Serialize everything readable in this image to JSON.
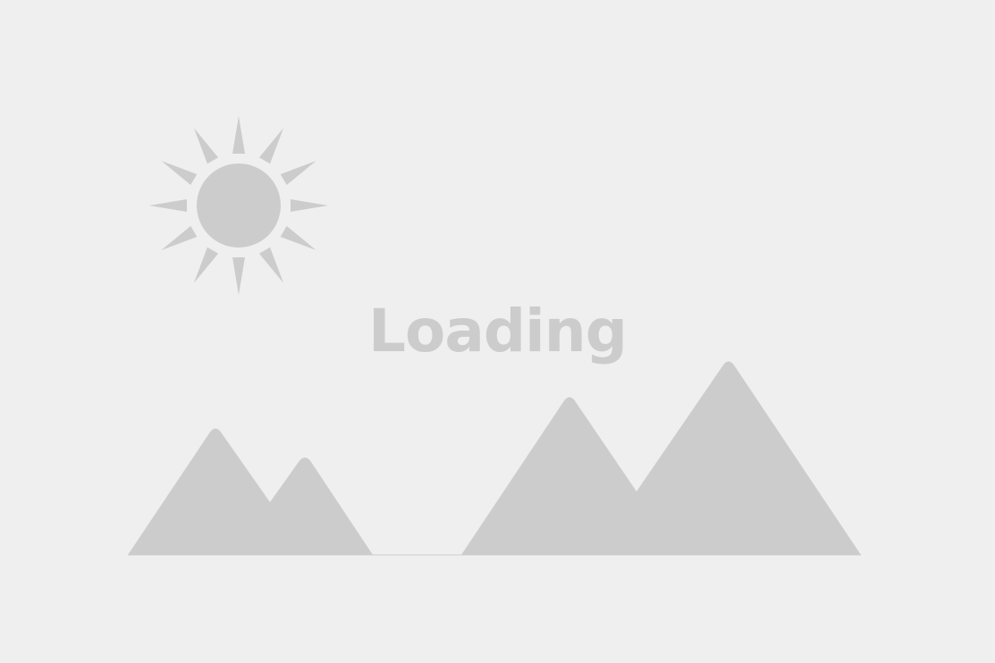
{
  "placeholder": {
    "loading_label": "Loading",
    "illustration": {
      "sun_icon": "sun-icon",
      "mountains_icon": "mountains-icon"
    },
    "colors": {
      "background": "#efefef",
      "shape": "#cccccc"
    }
  }
}
